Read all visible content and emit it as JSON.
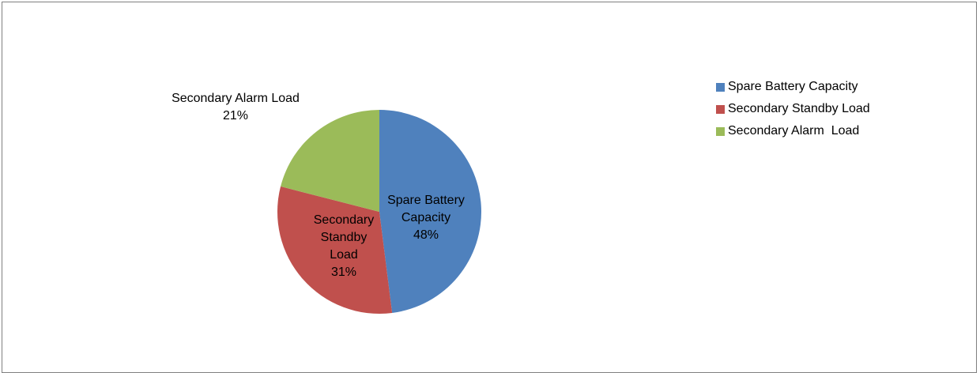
{
  "chart_data": {
    "type": "pie",
    "series": [
      {
        "name": "Spare Battery Capacity",
        "label_lines": [
          "Spare Battery",
          "Capacity"
        ],
        "value": 48,
        "percent_label": "48%",
        "color": "#4F81BD"
      },
      {
        "name": "Secondary Standby Load",
        "label_lines": [
          "Secondary",
          "Standby",
          "Load"
        ],
        "value": 31,
        "percent_label": "31%",
        "color": "#C0504D"
      },
      {
        "name": "Secondary Alarm  Load",
        "label_lines": [
          "Secondary Alarm  Load"
        ],
        "value": 21,
        "percent_label": "21%",
        "color": "#9BBB59"
      }
    ],
    "legend_position": "right"
  }
}
